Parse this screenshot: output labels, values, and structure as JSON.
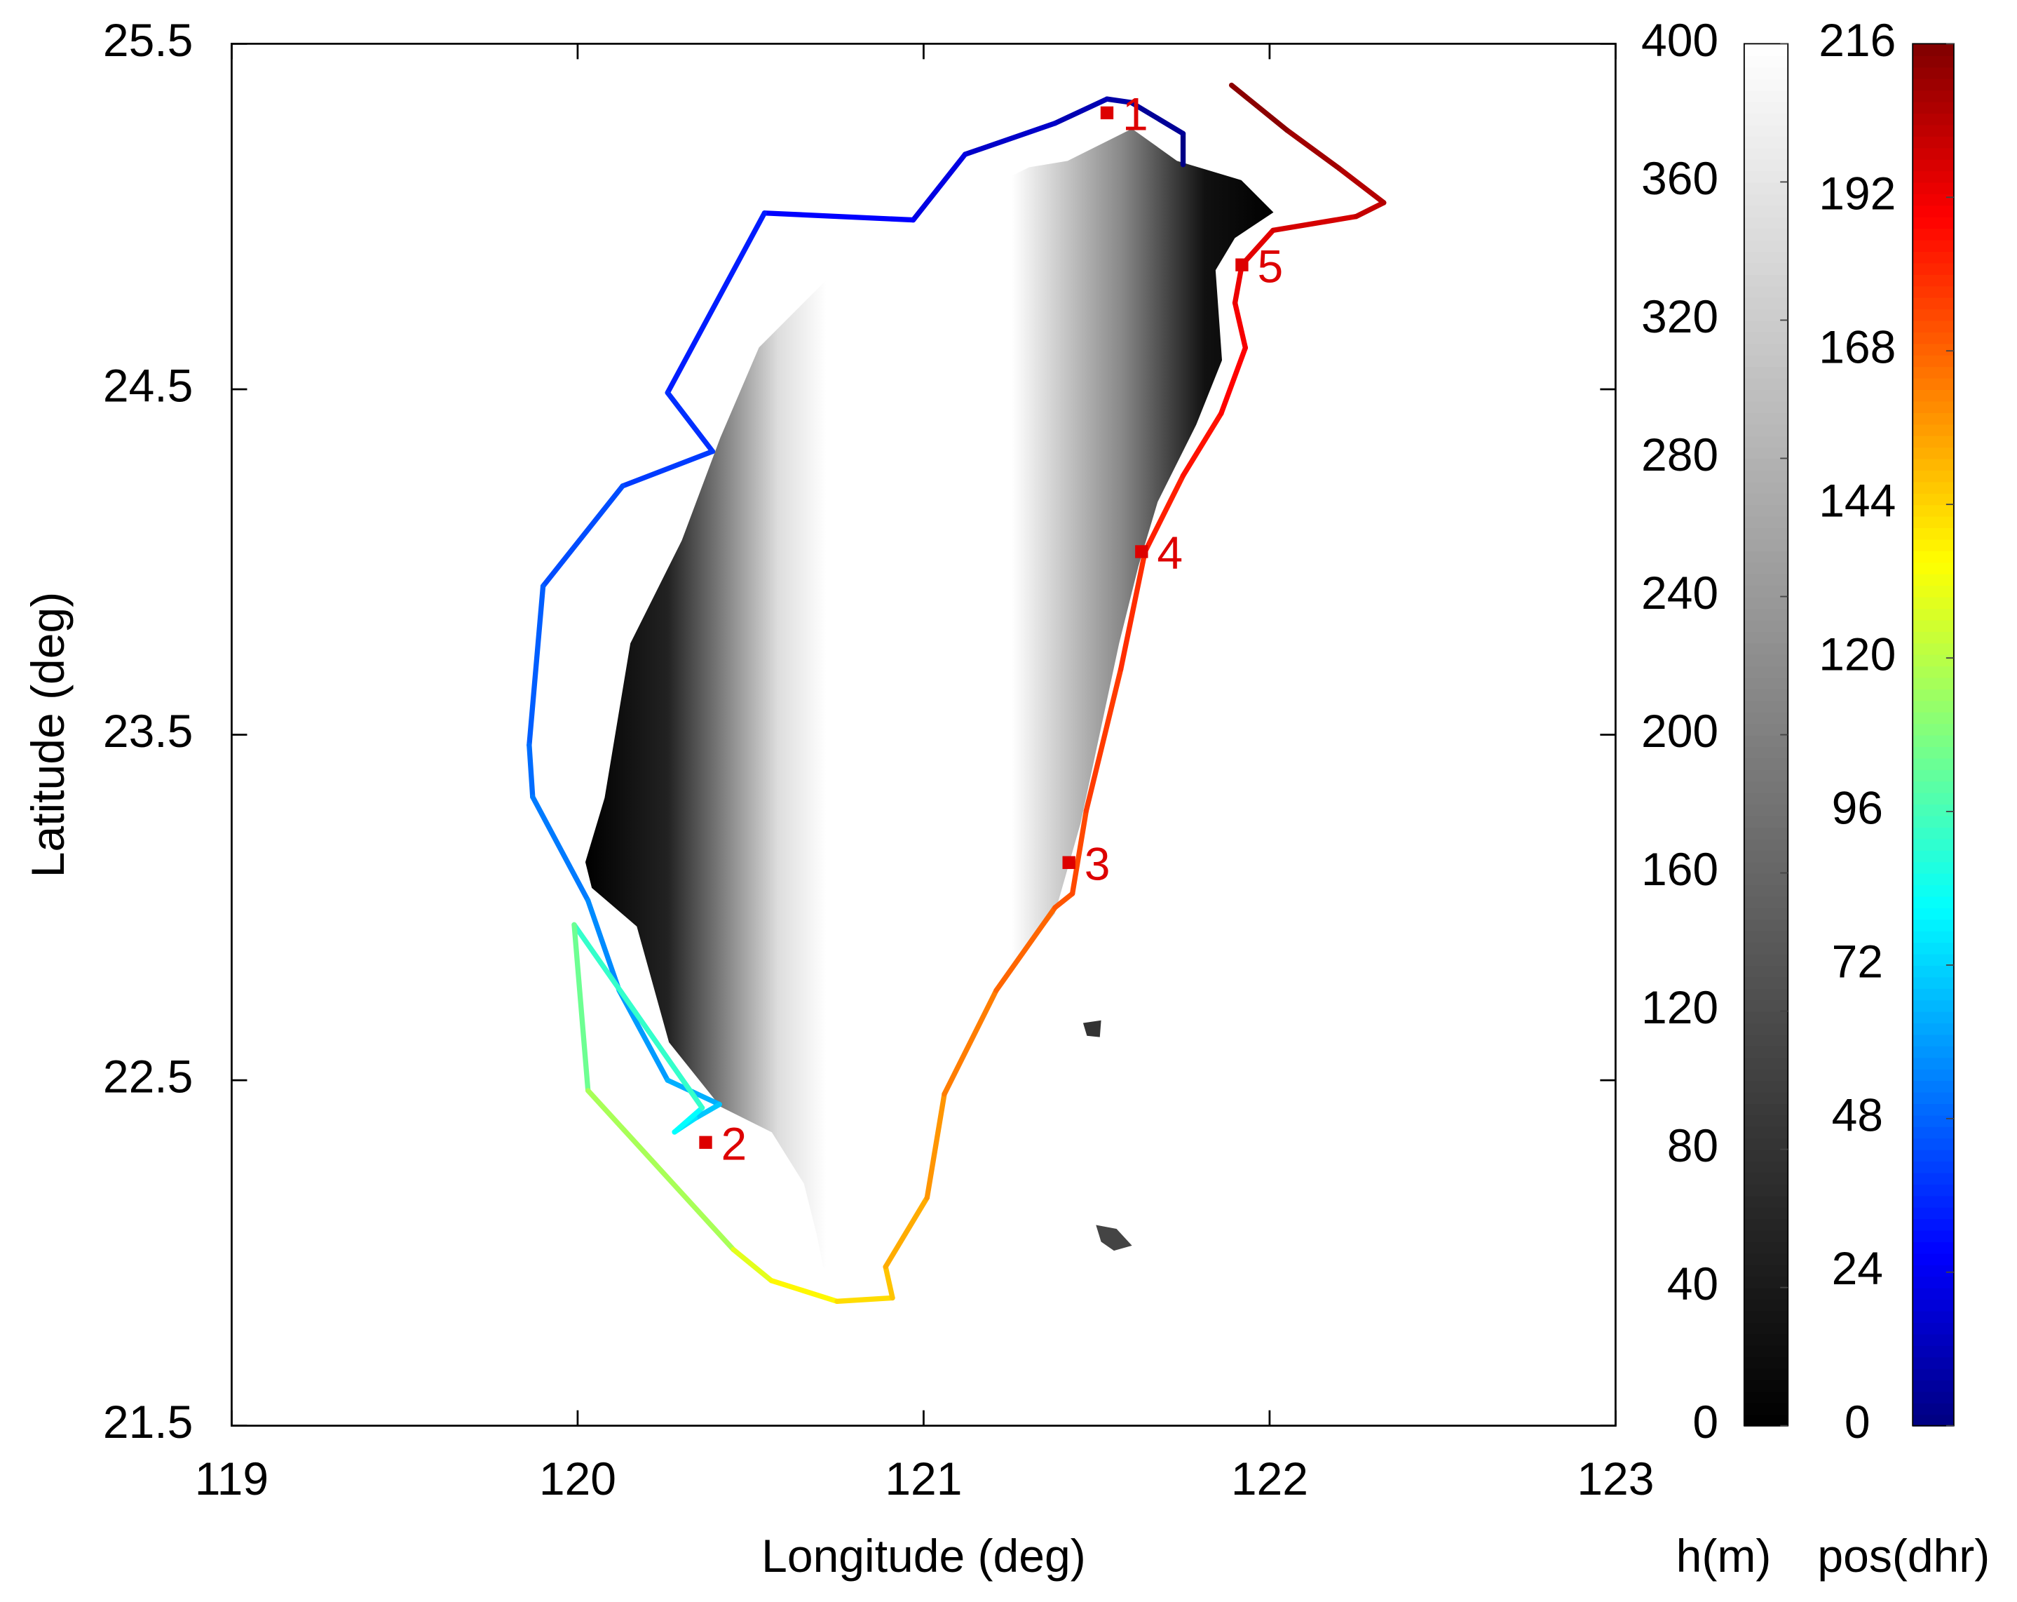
{
  "chart_data": {
    "type": "track",
    "xlabel": "Longitude (deg)",
    "ylabel": "Latitude (deg)",
    "xlim": [
      119,
      123
    ],
    "ylim": [
      21.5,
      25.5
    ],
    "xticks": [
      119,
      120,
      121,
      122,
      123
    ],
    "yticks": [
      21.5,
      22.5,
      23.5,
      24.5,
      25.5
    ],
    "track": {
      "x": [
        121.75,
        121.75,
        121.6,
        121.53,
        121.38,
        121.12,
        120.97,
        120.54,
        120.26,
        120.39,
        120.13,
        119.9,
        119.86,
        119.87,
        120.03,
        120.12,
        120.26,
        120.41,
        120.34,
        120.28,
        120.36,
        119.99,
        120.03,
        120.45,
        120.56,
        120.75,
        120.91,
        120.89,
        121.01,
        121.06,
        121.21,
        121.38,
        121.43,
        121.47,
        121.57,
        121.64,
        121.75,
        121.86,
        121.93,
        121.9,
        121.92,
        122.01,
        122.25,
        122.33,
        122.2,
        122.05,
        121.89
      ],
      "y": [
        25.15,
        25.24,
        25.33,
        25.34,
        25.27,
        25.18,
        24.99,
        25.01,
        24.49,
        24.32,
        24.22,
        23.93,
        23.47,
        23.32,
        23.02,
        22.76,
        22.5,
        22.43,
        22.39,
        22.35,
        22.42,
        22.95,
        22.47,
        22.01,
        21.92,
        21.86,
        21.87,
        21.96,
        22.16,
        22.46,
        22.76,
        23.0,
        23.04,
        23.28,
        23.69,
        24.03,
        24.25,
        24.43,
        24.62,
        24.75,
        24.86,
        24.96,
        25.0,
        25.04,
        25.14,
        25.25,
        25.38
      ],
      "t": [
        0,
        3,
        7,
        9,
        13,
        18,
        24,
        30,
        36,
        38,
        41,
        45,
        49,
        51,
        55,
        58,
        62,
        66,
        72,
        78,
        84,
        100,
        108,
        125,
        133,
        140,
        145,
        150,
        155,
        160,
        165,
        170,
        172,
        175,
        178,
        181,
        184,
        187,
        190,
        192,
        194,
        196,
        200,
        203,
        207,
        211,
        216
      ]
    },
    "stations": {
      "color": "#dd0000",
      "labels": [
        "1",
        "2",
        "3",
        "4",
        "5"
      ],
      "x": [
        121.53,
        120.37,
        121.42,
        121.63,
        121.92
      ],
      "y": [
        25.3,
        22.32,
        23.13,
        24.03,
        24.86
      ]
    },
    "colorbars": [
      {
        "label": "h(m)",
        "colormap": "gray",
        "lim": [
          0,
          400
        ],
        "ticks": [
          0,
          40,
          80,
          120,
          160,
          200,
          240,
          280,
          320,
          360,
          400
        ]
      },
      {
        "label": "pos(dhr)",
        "colormap": "jet",
        "lim": [
          0,
          216
        ],
        "ticks": [
          0,
          24,
          48,
          72,
          96,
          120,
          144,
          168,
          192,
          216
        ]
      }
    ]
  }
}
